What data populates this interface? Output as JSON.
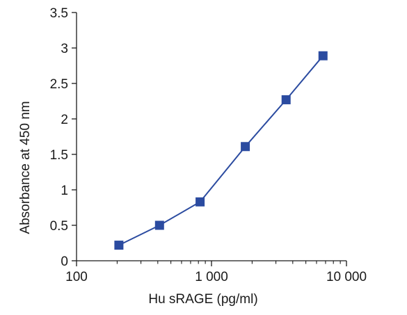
{
  "chart_data": {
    "type": "line",
    "title": "",
    "xlabel": "Hu sRAGE (pg/ml)",
    "ylabel": "Absorbance at 450 nm",
    "x_scale": "log",
    "xlim": [
      100,
      10000
    ],
    "ylim": [
      0,
      3.5
    ],
    "x_ticks": [
      {
        "value": 100,
        "label": "100"
      },
      {
        "value": 1000,
        "label": "1 000"
      },
      {
        "value": 10000,
        "label": "10 000"
      }
    ],
    "y_ticks": [
      {
        "value": 0,
        "label": "0"
      },
      {
        "value": 0.5,
        "label": "0.5"
      },
      {
        "value": 1,
        "label": "1"
      },
      {
        "value": 1.5,
        "label": "1.5"
      },
      {
        "value": 2,
        "label": "2"
      },
      {
        "value": 2.5,
        "label": "2.5"
      },
      {
        "value": 3,
        "label": "3"
      },
      {
        "value": 3.5,
        "label": "3.5"
      }
    ],
    "grid": false,
    "legend": "none",
    "marker": "square",
    "color": "#2b4ba0",
    "series": [
      {
        "x": [
          206,
          412,
          823,
          1780,
          3570,
          6700
        ],
        "y": [
          0.22,
          0.5,
          0.83,
          1.61,
          2.27,
          2.89
        ]
      }
    ]
  }
}
